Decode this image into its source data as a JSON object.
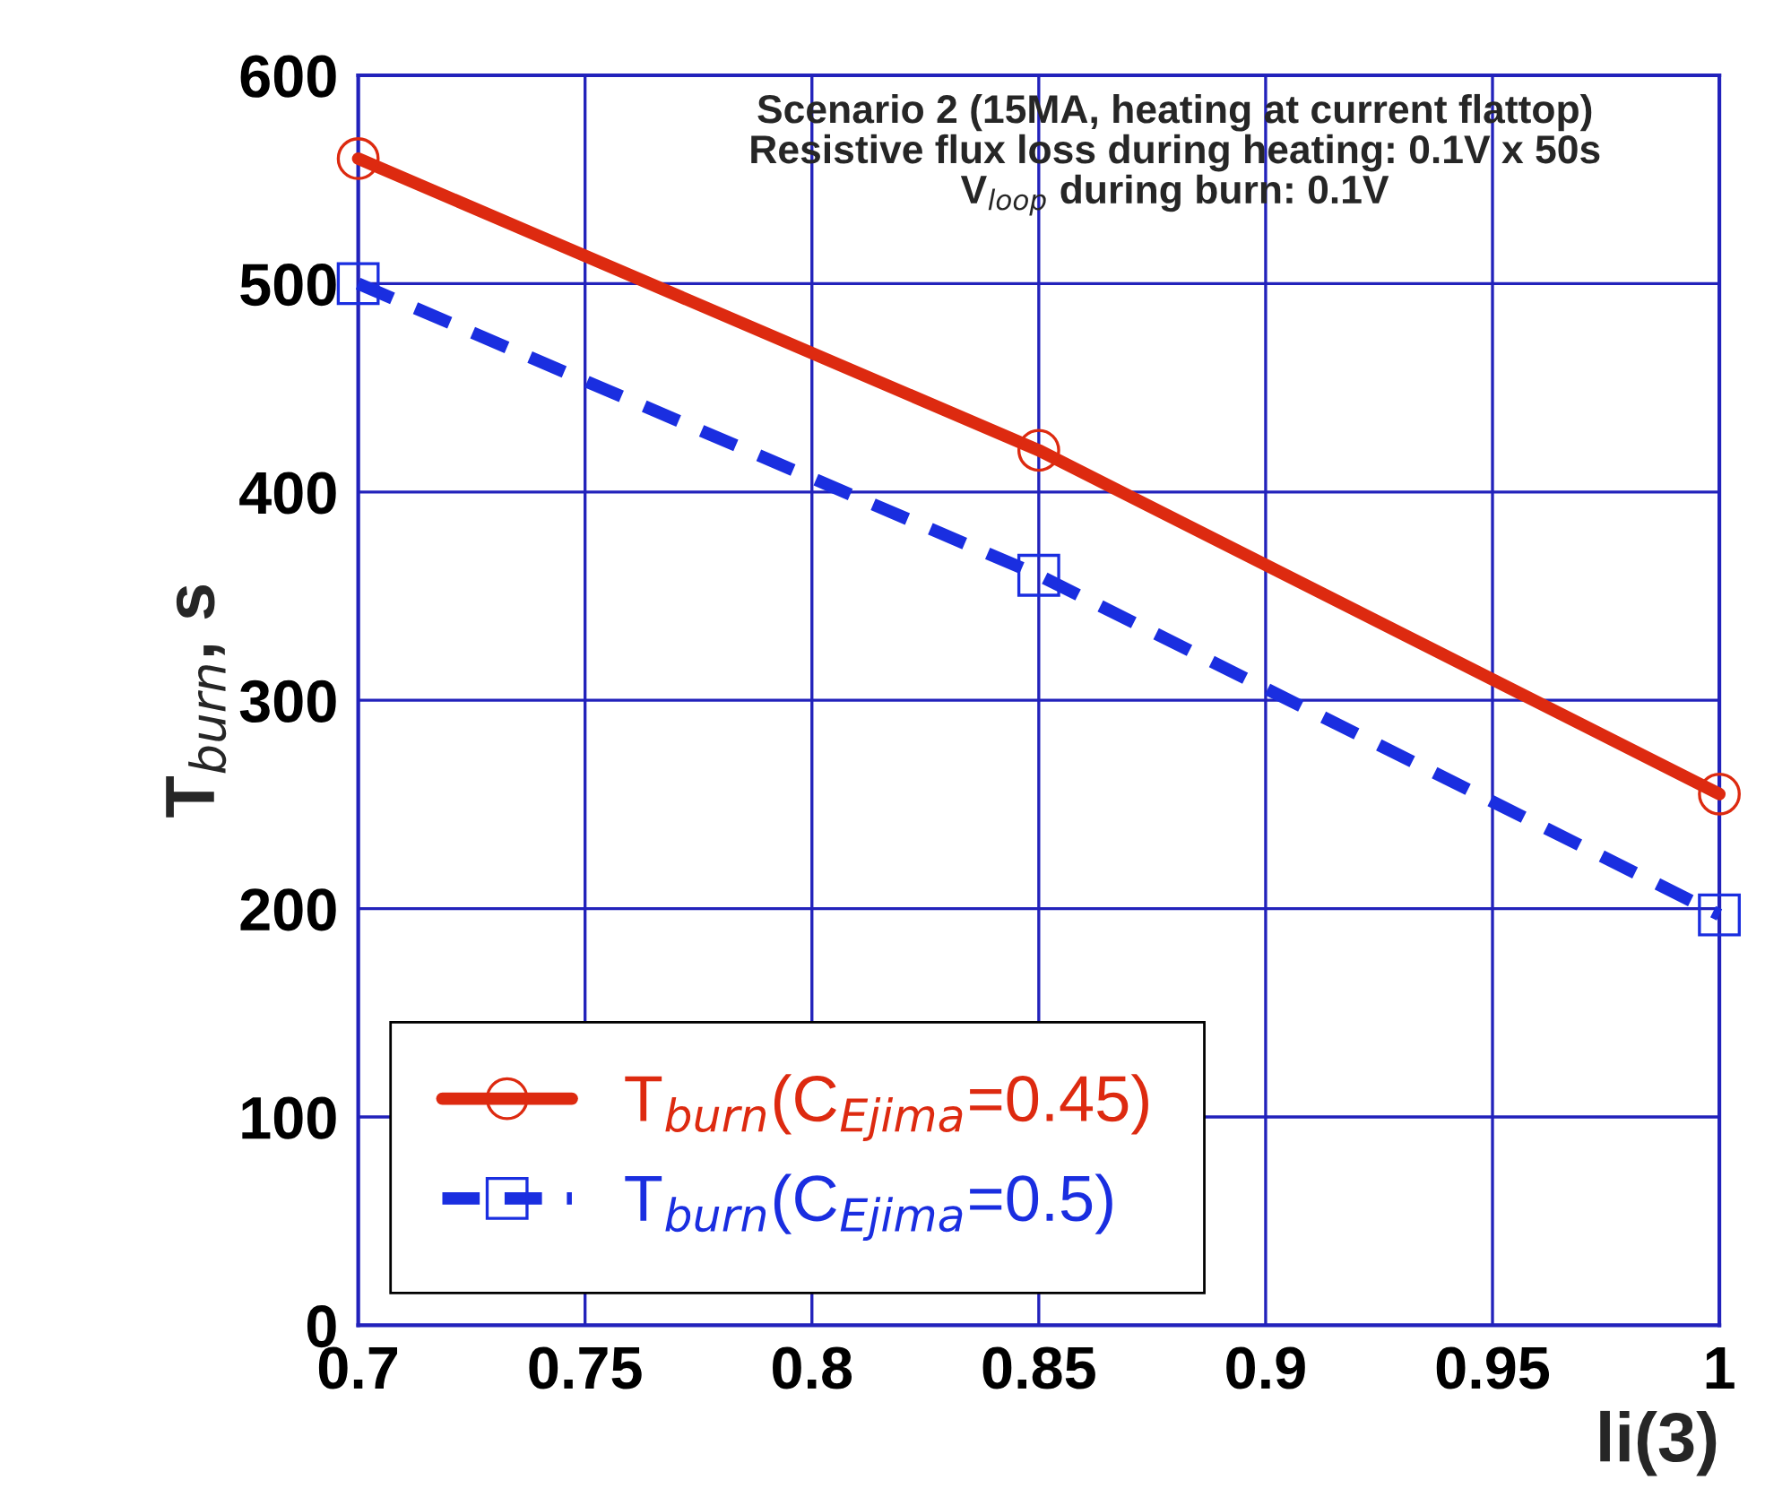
{
  "chart_data": {
    "type": "line",
    "xlabel": "li(3)",
    "ylabel": "T$_{burn}$, s",
    "x": [
      0.7,
      0.85,
      1.0
    ],
    "series": [
      {
        "name": "T$_{burn}$(C$_{Ejima}$=0.45)",
        "color": "#dd2a10",
        "values": [
          560,
          420,
          255
        ],
        "marker": "circle",
        "line_style": "solid"
      },
      {
        "name": "T$_{burn}$(C$_{Ejima}$=0.5)",
        "color": "#1a2ee0",
        "values": [
          500,
          360,
          197
        ],
        "marker": "square",
        "line_style": "dashed"
      }
    ],
    "xlim": [
      0.7,
      1.0
    ],
    "xticks": [
      0.7,
      0.75,
      0.8,
      0.85,
      0.9,
      0.95,
      1
    ],
    "ylim": [
      0,
      600
    ],
    "yticks": [
      0,
      100,
      200,
      300,
      400,
      500,
      600
    ],
    "grid": true,
    "legend": "bottom left",
    "annotations": [
      "Scenario 2 (15MA, heating at current flattop)\nResistive flux loss during heating: 0.1V x 50s\nV$_{loop}$ during burn: 0.1V"
    ]
  }
}
